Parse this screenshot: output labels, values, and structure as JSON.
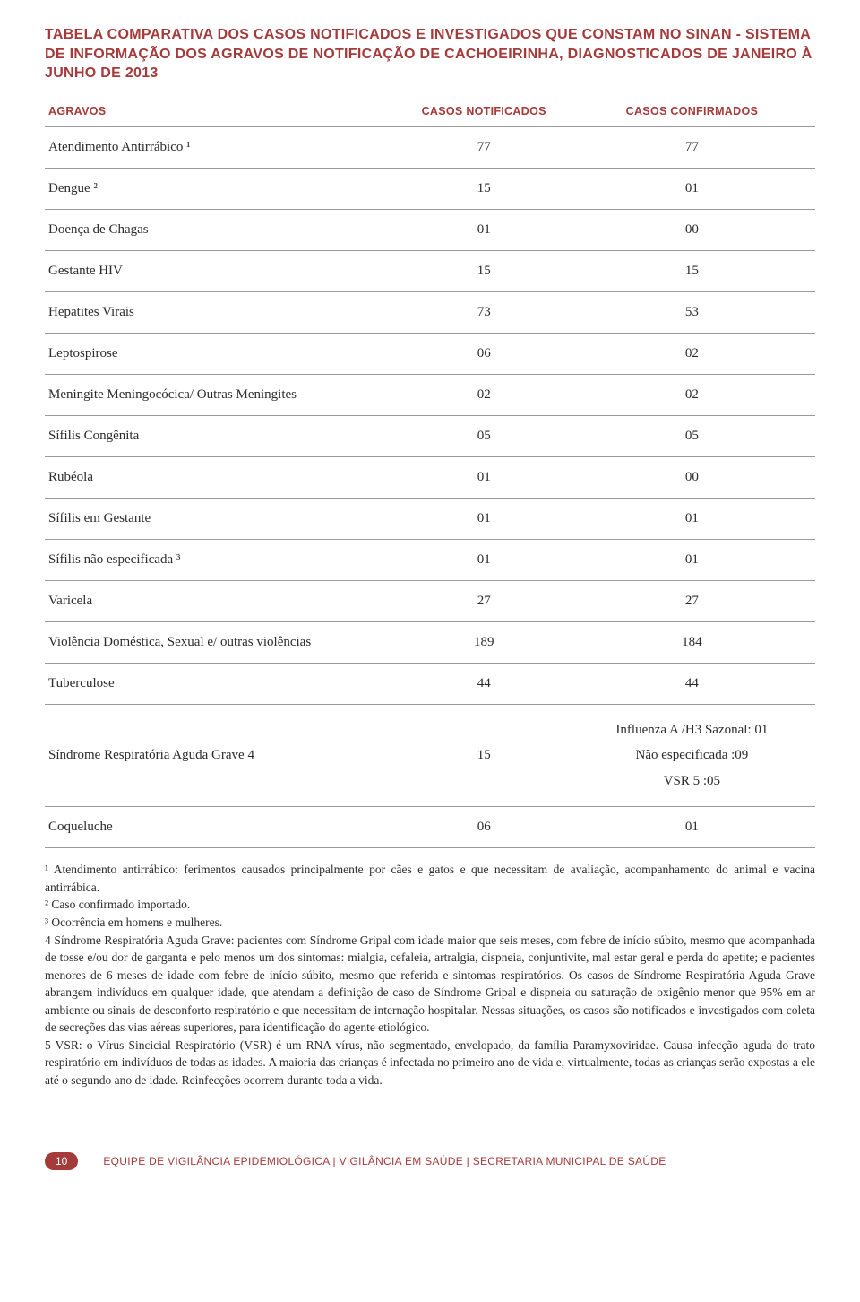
{
  "title": "TABELA COMPARATIVA DOS CASOS NOTIFICADOS E INVESTIGADOS QUE CONSTAM NO SINAN - SISTEMA DE INFORMAÇÃO DOS AGRAVOS DE NOTIFICAÇÃO DE CACHOEIRINHA, DIAGNOSTICADOS DE JANEIRO À JUNHO DE 2013",
  "colors": {
    "accent": "#a43a3a",
    "grid": "#9a9a9a",
    "text": "#2b2b2b",
    "background": "#ffffff"
  },
  "typography": {
    "title_fontsize": 16,
    "header_fontsize": 12.5,
    "cell_fontsize": 15,
    "notes_fontsize": 13.5,
    "footer_fontsize": 12
  },
  "table": {
    "columns": [
      {
        "key": "agravo",
        "label": "AGRAVOS",
        "align": "left",
        "width": "46%"
      },
      {
        "key": "notif",
        "label": "CASOS NOTIFICADOS",
        "align": "center",
        "width": "22%"
      },
      {
        "key": "conf",
        "label": "CASOS CONFIRMADOS",
        "align": "center",
        "width": "32%"
      }
    ],
    "rows": [
      {
        "agravo": "Atendimento Antirrábico ¹",
        "notif": "77",
        "conf": "77"
      },
      {
        "agravo": "Dengue ²",
        "notif": "15",
        "conf": "01"
      },
      {
        "agravo": "Doença de Chagas",
        "notif": "01",
        "conf": "00"
      },
      {
        "agravo": "Gestante HIV",
        "notif": "15",
        "conf": "15"
      },
      {
        "agravo": "Hepatites Virais",
        "notif": "73",
        "conf": "53"
      },
      {
        "agravo": "Leptospirose",
        "notif": "06",
        "conf": "02"
      },
      {
        "agravo": "Meningite Meningocócica/ Outras Meningites",
        "notif": "02",
        "conf": "02"
      },
      {
        "agravo": "Sífilis Congênita",
        "notif": "05",
        "conf": "05"
      },
      {
        "agravo": "Rubéola",
        "notif": "01",
        "conf": "00"
      },
      {
        "agravo": "Sífilis em Gestante",
        "notif": "01",
        "conf": "01"
      },
      {
        "agravo": "Sífilis não especificada ³",
        "notif": "01",
        "conf": "01"
      },
      {
        "agravo": "Varicela",
        "notif": "27",
        "conf": "27"
      },
      {
        "agravo": "Violência Doméstica, Sexual e/ outras violências",
        "notif": "189",
        "conf": "184"
      },
      {
        "agravo": "Tuberculose",
        "notif": "44",
        "conf": "44"
      },
      {
        "agravo": "Síndrome Respiratória Aguda Grave 4",
        "notif": "15",
        "conf_multi": [
          "Influenza A /H3 Sazonal: 01",
          "Não especificada :09",
          "VSR 5 :05"
        ]
      },
      {
        "agravo": "Coqueluche",
        "notif": "06",
        "conf": "01"
      }
    ]
  },
  "notes": [
    "¹ Atendimento antirrábico: ferimentos causados principalmente por cães e gatos e que necessitam de avaliação, acompanhamento do animal e vacina antirrábica.",
    "² Caso confirmado importado.",
    "³ Ocorrência em homens e mulheres.",
    "4 Síndrome Respiratória Aguda Grave: pacientes com Síndrome Gripal com idade maior que seis meses, com febre de início súbito, mesmo que acompanhada de tosse e/ou dor de garganta e pelo menos um dos sintomas: mialgia, cefaleia, artralgia, dispneia, conjuntivite, mal estar geral e perda do apetite; e pacientes menores de 6 meses de idade com febre de início súbito, mesmo que referida e sintomas respiratórios. Os casos de Síndrome Respiratória Aguda Grave abrangem indivíduos em qualquer idade, que atendam a definição de caso de Síndrome Gripal e dispneia ou saturação de oxigênio menor que 95% em ar ambiente ou sinais de desconforto respiratório e que necessitam de internação hospitalar. Nessas situações, os casos são notificados e investigados com coleta de secreções das vias aéreas superiores, para identificação do agente etiológico.",
    "5 VSR: o Vírus Sincicial Respiratório (VSR) é um RNA vírus, não segmentado, envelopado, da família Paramyxoviridae. Causa infecção aguda do trato respiratório em indivíduos de todas as idades. A maioria das crianças é infectada no primeiro ano de vida e, virtualmente, todas as crianças serão expostas a ele até o segundo ano de idade. Reinfecções ocorrem durante toda a vida."
  ],
  "footer": {
    "page": "10",
    "text": "EQUIPE DE VIGILÂNCIA EPIDEMIOLÓGICA | VIGILÂNCIA EM SAÚDE | SECRETARIA MUNICIPAL DE SAÚDE"
  }
}
